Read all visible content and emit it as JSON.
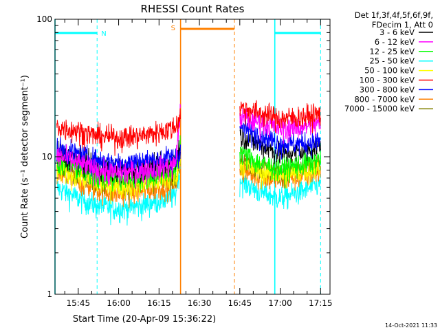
{
  "chart_data": {
    "type": "line",
    "title": "RHESSI Count Rates",
    "xlabel": "Start Time (20-Apr-09 15:36:22)",
    "ylabel": "Count Rate (s⁻¹ detector segment⁻¹)",
    "yscale": "log",
    "ylim": [
      1,
      100
    ],
    "xlim": [
      "15:36:22",
      "17:18:30"
    ],
    "x_ticks": [
      "15:45",
      "16:00",
      "16:15",
      "16:30",
      "16:45",
      "17:00",
      "17:15"
    ],
    "y_ticks": [
      "1",
      "10",
      "100"
    ],
    "grid": false,
    "legend_placement": "top-right outside",
    "legend_header": [
      "Det 1f,3f,4f,5f,6f,9f,",
      "FDecim 1, Att 0"
    ],
    "footer_timestamp": "14-Oct-2021 11:33",
    "data_gap": {
      "start": "16:23",
      "end": "16:45"
    },
    "series": [
      {
        "name": "3 - 6 keV",
        "color": "#000000",
        "segments": [
          {
            "t": [
              "15:37",
              "15:45",
              "15:52",
              "16:00",
              "16:08",
              "16:15",
              "16:21",
              "16:23"
            ],
            "y": [
              10.8,
              9.5,
              8.5,
              8.0,
              8.3,
              8.6,
              9.0,
              12.5
            ]
          },
          {
            "t": [
              "16:45",
              "16:52",
              "17:00",
              "17:08",
              "17:15"
            ],
            "y": [
              14.5,
              12.5,
              10.5,
              11.0,
              12.0
            ]
          }
        ]
      },
      {
        "name": "6 - 12 keV",
        "color": "#ff00ff",
        "segments": [
          {
            "t": [
              "15:37",
              "15:45",
              "15:52",
              "16:00",
              "16:08",
              "16:15",
              "16:21",
              "16:23"
            ],
            "y": [
              10.2,
              9.0,
              8.0,
              7.6,
              7.9,
              8.3,
              8.7,
              22
            ]
          },
          {
            "t": [
              "16:45",
              "16:52",
              "17:00",
              "17:08",
              "17:15"
            ],
            "y": [
              19.5,
              18.0,
              16.0,
              16.5,
              17.5
            ]
          }
        ]
      },
      {
        "name": "12 - 25 keV",
        "color": "#00ff00",
        "segments": [
          {
            "t": [
              "15:37",
              "15:45",
              "15:52",
              "16:00",
              "16:08",
              "16:15",
              "16:21",
              "16:23"
            ],
            "y": [
              9.2,
              8.2,
              7.2,
              6.8,
              7.1,
              7.6,
              8.0,
              13
            ]
          },
          {
            "t": [
              "16:45",
              "16:52",
              "17:00",
              "17:08",
              "17:15"
            ],
            "y": [
              11.0,
              9.0,
              8.2,
              8.8,
              9.6
            ]
          }
        ]
      },
      {
        "name": "25 - 50 keV",
        "color": "#00ffff",
        "segments": [
          {
            "t": [
              "15:37",
              "15:45",
              "15:52",
              "16:00",
              "16:08",
              "16:15",
              "16:21",
              "16:23"
            ],
            "y": [
              6.0,
              5.0,
              4.4,
              4.2,
              4.4,
              4.8,
              5.2,
              8.5
            ]
          },
          {
            "t": [
              "16:45",
              "16:52",
              "17:00",
              "17:08",
              "17:15"
            ],
            "y": [
              6.8,
              5.6,
              5.0,
              5.6,
              6.4
            ]
          }
        ]
      },
      {
        "name": "50 - 100 keV",
        "color": "#ffff00",
        "segments": [
          {
            "t": [
              "15:37",
              "15:45",
              "15:52",
              "16:00",
              "16:08",
              "16:15",
              "16:21",
              "16:23"
            ],
            "y": [
              8.2,
              7.2,
              6.4,
              6.1,
              6.3,
              6.7,
              7.0,
              10
            ]
          },
          {
            "t": [
              "16:45",
              "16:52",
              "17:00",
              "17:08",
              "17:15"
            ],
            "y": [
              9.0,
              7.8,
              7.3,
              7.8,
              8.4
            ]
          }
        ]
      },
      {
        "name": "100 - 300 keV",
        "color": "#ff0000",
        "segments": [
          {
            "t": [
              "15:37",
              "15:45",
              "15:52",
              "16:00",
              "16:08",
              "16:15",
              "16:21",
              "16:23"
            ],
            "y": [
              16.5,
              15.5,
              14.2,
              13.8,
              14.2,
              15.2,
              16.5,
              20
            ]
          },
          {
            "t": [
              "16:45",
              "16:52",
              "17:00",
              "17:08",
              "17:15"
            ],
            "y": [
              23.0,
              21.0,
              19.0,
              19.5,
              20.5
            ]
          }
        ]
      },
      {
        "name": "300 - 800 keV",
        "color": "#0000ff",
        "segments": [
          {
            "t": [
              "15:37",
              "15:45",
              "15:52",
              "16:00",
              "16:08",
              "16:15",
              "16:21",
              "16:23"
            ],
            "y": [
              11.6,
              10.4,
              9.4,
              9.0,
              9.3,
              9.6,
              10.0,
              11
            ]
          },
          {
            "t": [
              "16:45",
              "16:52",
              "17:00",
              "17:08",
              "17:15"
            ],
            "y": [
              16.5,
              14.5,
              12.5,
              12.5,
              13.0
            ]
          }
        ]
      },
      {
        "name": "800 - 7000 keV",
        "color": "#ff8000",
        "segments": [
          {
            "t": [
              "15:37",
              "15:45",
              "15:52",
              "16:00",
              "16:08",
              "16:15",
              "16:21",
              "16:23"
            ],
            "y": [
              7.4,
              6.6,
              5.8,
              5.4,
              5.6,
              6.0,
              6.4,
              9
            ]
          },
          {
            "t": [
              "16:45",
              "16:52",
              "17:00",
              "17:08",
              "17:15"
            ],
            "y": [
              8.2,
              7.2,
              6.8,
              7.2,
              7.8
            ]
          }
        ]
      },
      {
        "name": "7000 - 15000 keV",
        "color": "#808000",
        "segments": [
          {
            "t": [
              "15:37",
              "15:45",
              "15:52",
              "16:00",
              "16:08",
              "16:15",
              "16:21",
              "16:23"
            ],
            "y": [
              8.6,
              7.6,
              6.8,
              6.4,
              6.6,
              7.0,
              7.4,
              10
            ]
          },
          {
            "t": [
              "16:45",
              "16:52",
              "17:00",
              "17:08",
              "17:15"
            ],
            "y": [
              9.6,
              8.4,
              7.8,
              8.2,
              8.8
            ]
          }
        ]
      }
    ],
    "annotations": [
      {
        "label": "N",
        "color": "#00ffff",
        "kind": "night",
        "start": "15:36:22",
        "end": "15:52"
      },
      {
        "label": "",
        "color": "#00ffff",
        "kind": "night",
        "start": "16:58",
        "end": "17:15"
      },
      {
        "label": "S",
        "color": "#ff8000",
        "kind": "saa",
        "start": "16:23",
        "end": "16:43"
      }
    ]
  }
}
